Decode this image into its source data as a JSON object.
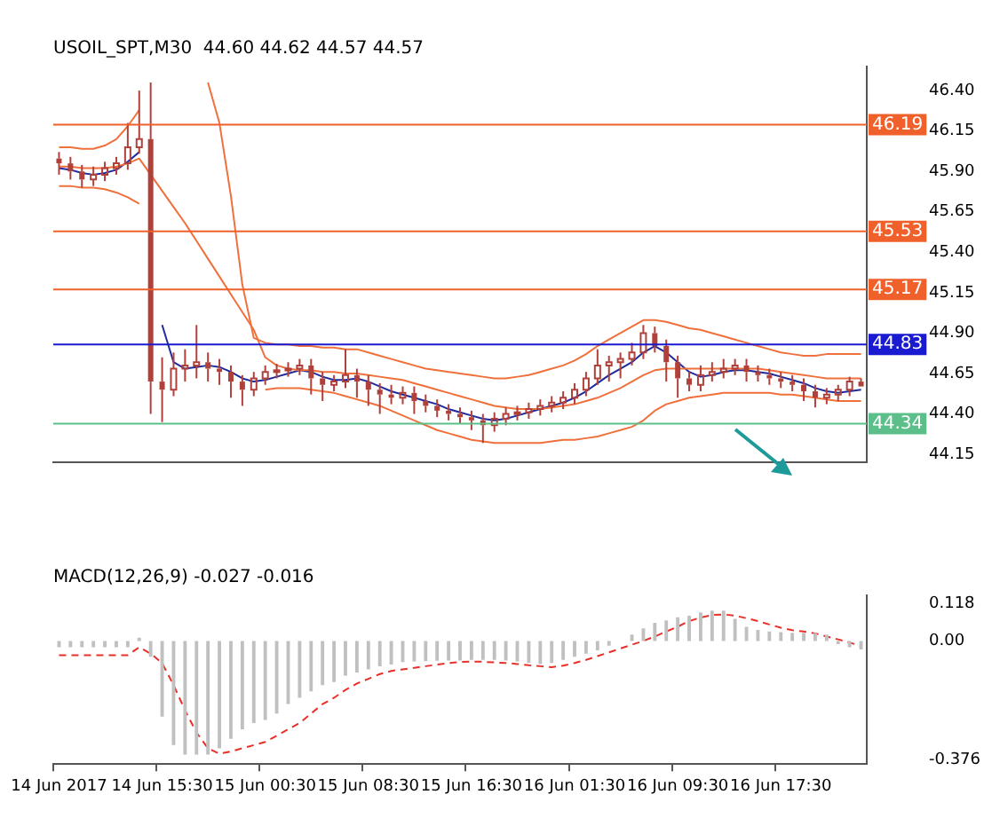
{
  "chart_data": [
    {
      "type": "candlestick",
      "title": "USOIL_SPT,M30  44.60 44.62 44.57 44.57",
      "categories": [
        null,
        null,
        null,
        null,
        null,
        null,
        null,
        null,
        null,
        null,
        null,
        null,
        null,
        null,
        null,
        null,
        null,
        null,
        null,
        null,
        null,
        null,
        null,
        null,
        null,
        null,
        null,
        null,
        null,
        null,
        null,
        null,
        null,
        null,
        null,
        null,
        null,
        null,
        null,
        null,
        null,
        null,
        null,
        null,
        null,
        null,
        null,
        null,
        null,
        null,
        null,
        null,
        null,
        null,
        null,
        null,
        null,
        null,
        null,
        null,
        null,
        null,
        null,
        null,
        null,
        null,
        null,
        null,
        null,
        null,
        null
      ],
      "series": [
        {
          "type": "line",
          "color": "#f0703c",
          "values": [
            46.05,
            46.05,
            46.04,
            46.04,
            46.06,
            46.1,
            46.18,
            46.28,
            null,
            null,
            null,
            null,
            null,
            46.45,
            46.2,
            45.75,
            45.2,
            44.87,
            44.84,
            44.83,
            44.83,
            44.82,
            44.82,
            44.81,
            44.81,
            44.8,
            44.8,
            44.78,
            44.76,
            44.74,
            44.72,
            44.7,
            44.68,
            44.67,
            44.66,
            44.65,
            44.64,
            44.63,
            44.62,
            44.62,
            44.63,
            44.64,
            44.66,
            44.68,
            44.7,
            44.73,
            44.77,
            44.82,
            44.86,
            44.9,
            44.94,
            44.98,
            44.98,
            44.97,
            44.95,
            44.93,
            44.92,
            44.9,
            44.88,
            44.86,
            44.84,
            44.82,
            44.8,
            44.78,
            44.77,
            44.76,
            44.76,
            44.77,
            44.77,
            44.77,
            44.77
          ]
        },
        {
          "type": "line",
          "color": "#f0703c",
          "values": [
            45.93,
            45.93,
            45.92,
            45.92,
            45.92,
            45.93,
            45.95,
            45.98,
            45.88,
            45.78,
            45.68,
            45.58,
            45.47,
            45.36,
            45.25,
            45.14,
            45.03,
            44.92,
            44.75,
            44.7,
            44.68,
            44.67,
            44.67,
            44.66,
            44.66,
            44.65,
            44.65,
            44.64,
            44.63,
            44.62,
            44.61,
            44.59,
            44.57,
            44.55,
            44.53,
            44.51,
            44.49,
            44.47,
            44.45,
            44.44,
            44.43,
            44.43,
            44.43,
            44.44,
            44.45,
            44.46,
            44.48,
            44.5,
            44.53,
            44.56,
            44.6,
            44.64,
            44.67,
            44.68,
            44.68,
            44.68,
            44.68,
            44.68,
            44.68,
            44.68,
            44.68,
            44.68,
            44.67,
            44.66,
            44.65,
            44.64,
            44.63,
            44.62,
            44.62,
            44.62,
            44.62
          ]
        },
        {
          "type": "line",
          "color": "#f0703c",
          "values": [
            45.81,
            45.81,
            45.8,
            45.8,
            45.79,
            45.77,
            45.74,
            45.7,
            null,
            null,
            null,
            null,
            null,
            null,
            null,
            null,
            null,
            null,
            44.55,
            44.56,
            44.56,
            44.56,
            44.55,
            44.54,
            44.53,
            44.51,
            44.49,
            44.47,
            44.45,
            44.42,
            44.39,
            44.36,
            44.33,
            44.3,
            44.28,
            44.26,
            44.24,
            44.23,
            44.22,
            44.22,
            44.22,
            44.22,
            44.22,
            44.23,
            44.24,
            44.24,
            44.25,
            44.26,
            44.28,
            44.3,
            44.32,
            44.36,
            44.42,
            44.46,
            44.48,
            44.5,
            44.51,
            44.52,
            44.53,
            44.53,
            44.53,
            44.53,
            44.53,
            44.52,
            44.52,
            44.51,
            44.5,
            44.49,
            44.48,
            44.48,
            44.48
          ]
        },
        {
          "type": "line",
          "color": "#1f2a9c",
          "values": [
            45.92,
            45.91,
            45.89,
            45.88,
            45.89,
            45.91,
            45.96,
            46.02,
            null,
            44.95,
            44.72,
            44.68,
            44.69,
            44.7,
            44.69,
            44.66,
            44.62,
            44.6,
            44.61,
            44.63,
            44.65,
            44.67,
            44.66,
            44.63,
            44.61,
            44.61,
            44.62,
            44.6,
            44.57,
            44.54,
            44.52,
            44.5,
            44.48,
            44.46,
            44.43,
            44.41,
            44.39,
            44.37,
            44.36,
            44.37,
            44.39,
            44.41,
            44.43,
            44.45,
            44.47,
            44.5,
            44.54,
            44.59,
            44.64,
            44.68,
            44.72,
            44.78,
            44.82,
            44.78,
            44.72,
            44.66,
            44.63,
            44.64,
            44.66,
            44.67,
            44.67,
            44.66,
            44.65,
            44.63,
            44.61,
            44.59,
            44.56,
            44.54,
            44.53,
            44.54,
            44.55
          ]
        },
        {
          "color": "#b0403a",
          "ohlc": [
            [
              45.98,
              46.02,
              45.88,
              45.95
            ],
            [
              45.95,
              45.99,
              45.85,
              45.9
            ],
            [
              45.9,
              45.94,
              45.8,
              45.85
            ],
            [
              45.85,
              45.93,
              45.81,
              45.88
            ],
            [
              45.88,
              45.96,
              45.84,
              45.92
            ],
            [
              45.92,
              45.99,
              45.88,
              45.95
            ],
            [
              45.95,
              46.2,
              45.91,
              46.05
            ],
            [
              46.05,
              46.4,
              46.01,
              46.1
            ],
            [
              46.1,
              46.45,
              44.4,
              44.6
            ],
            [
              44.6,
              44.75,
              44.35,
              44.55
            ],
            [
              44.55,
              44.78,
              44.51,
              44.68
            ],
            [
              44.68,
              44.8,
              44.6,
              44.7
            ],
            [
              44.7,
              44.95,
              44.62,
              44.72
            ],
            [
              44.72,
              44.78,
              44.6,
              44.68
            ],
            [
              44.68,
              44.74,
              44.58,
              44.66
            ],
            [
              44.66,
              44.7,
              44.5,
              44.6
            ],
            [
              44.6,
              44.64,
              44.45,
              44.55
            ],
            [
              44.55,
              44.66,
              44.51,
              44.62
            ],
            [
              44.62,
              44.7,
              44.58,
              44.66
            ],
            [
              44.66,
              44.71,
              44.62,
              44.67
            ],
            [
              44.67,
              44.72,
              44.63,
              44.68
            ],
            [
              44.68,
              44.74,
              44.64,
              44.7
            ],
            [
              44.7,
              44.74,
              44.52,
              44.62
            ],
            [
              44.62,
              44.66,
              44.48,
              44.58
            ],
            [
              44.58,
              44.64,
              44.54,
              44.6
            ],
            [
              44.6,
              44.8,
              44.56,
              44.64
            ],
            [
              44.64,
              44.68,
              44.5,
              44.6
            ],
            [
              44.6,
              44.64,
              44.45,
              44.55
            ],
            [
              44.55,
              44.59,
              44.4,
              44.52
            ],
            [
              44.52,
              44.58,
              44.46,
              44.5
            ],
            [
              44.5,
              44.57,
              44.46,
              44.53
            ],
            [
              44.53,
              44.57,
              44.4,
              44.48
            ],
            [
              44.48,
              44.52,
              44.41,
              44.45
            ],
            [
              44.45,
              44.49,
              44.38,
              44.42
            ],
            [
              44.42,
              44.46,
              44.36,
              44.4
            ],
            [
              44.4,
              44.44,
              44.34,
              44.38
            ],
            [
              44.38,
              44.42,
              44.3,
              44.36
            ],
            [
              44.36,
              44.4,
              44.22,
              44.33
            ],
            [
              44.33,
              44.41,
              44.29,
              44.37
            ],
            [
              44.37,
              44.44,
              44.33,
              44.4
            ],
            [
              44.4,
              44.45,
              44.36,
              44.41
            ],
            [
              44.41,
              44.47,
              44.37,
              44.43
            ],
            [
              44.43,
              44.49,
              44.39,
              44.45
            ],
            [
              44.45,
              44.51,
              44.41,
              44.47
            ],
            [
              44.47,
              44.54,
              44.43,
              44.5
            ],
            [
              44.5,
              44.59,
              44.46,
              44.55
            ],
            [
              44.55,
              44.66,
              44.51,
              44.62
            ],
            [
              44.62,
              44.8,
              44.58,
              44.7
            ],
            [
              44.7,
              44.76,
              44.6,
              44.72
            ],
            [
              44.72,
              44.78,
              44.62,
              44.74
            ],
            [
              44.74,
              44.84,
              44.7,
              44.78
            ],
            [
              44.78,
              44.95,
              44.74,
              44.9
            ],
            [
              44.9,
              44.94,
              44.78,
              44.82
            ],
            [
              44.82,
              44.86,
              44.6,
              44.72
            ],
            [
              44.72,
              44.76,
              44.5,
              44.62
            ],
            [
              44.62,
              44.66,
              44.54,
              44.58
            ],
            [
              44.58,
              44.7,
              44.54,
              44.64
            ],
            [
              44.64,
              44.72,
              44.6,
              44.66
            ],
            [
              44.66,
              44.74,
              44.62,
              44.68
            ],
            [
              44.68,
              44.74,
              44.64,
              44.7
            ],
            [
              44.7,
              44.74,
              44.6,
              44.66
            ],
            [
              44.66,
              44.7,
              44.6,
              44.64
            ],
            [
              44.64,
              44.68,
              44.58,
              44.62
            ],
            [
              44.62,
              44.66,
              44.56,
              44.6
            ],
            [
              44.6,
              44.64,
              44.54,
              44.58
            ],
            [
              44.58,
              44.62,
              44.48,
              44.54
            ],
            [
              44.54,
              44.58,
              44.44,
              44.5
            ],
            [
              44.5,
              44.56,
              44.46,
              44.52
            ],
            [
              44.52,
              44.58,
              44.48,
              44.55
            ],
            [
              44.55,
              44.63,
              44.51,
              44.6
            ],
            [
              44.6,
              44.62,
              44.57,
              44.57
            ]
          ]
        }
      ],
      "ylim": [
        44.1,
        46.55
      ],
      "yticks": [
        44.15,
        {
          "value": 44.4,
          "label": "44.40"
        },
        44.65,
        {
          "value": 44.9,
          "label": "44.90"
        },
        45.15,
        {
          "value": 45.4,
          "label": "45.40"
        },
        45.65,
        {
          "value": 45.9,
          "label": "45.90"
        },
        46.15,
        {
          "value": 46.4,
          "label": "46.40"
        }
      ],
      "ref_lines": [
        {
          "axis": "y",
          "value": 46.19,
          "label": "46.19",
          "color": "#f0602a"
        },
        {
          "axis": "y",
          "value": 45.53,
          "label": "45.53",
          "color": "#f0602a"
        },
        {
          "axis": "y",
          "value": 45.17,
          "label": "45.17",
          "color": "#f0602a"
        },
        {
          "axis": "y",
          "value": 44.83,
          "label": "44.83",
          "color": "#1a1ad0"
        },
        {
          "axis": "y",
          "value": 44.34,
          "label": "44.34",
          "color": "#5cbf8a"
        }
      ],
      "marker": "none",
      "legend": false,
      "grid": false,
      "tick_labels": "y"
    },
    {
      "type": "bar",
      "title": "MACD(12,26,9) -0.027 -0.016",
      "categories": [
        "14 Jun 2017",
        null,
        null,
        null,
        null,
        null,
        null,
        null,
        null,
        "14 Jun 15:30",
        null,
        null,
        null,
        null,
        null,
        null,
        null,
        null,
        "15 Jun 00:30",
        null,
        null,
        null,
        null,
        null,
        null,
        null,
        null,
        "15 Jun 08:30",
        null,
        null,
        null,
        null,
        null,
        null,
        null,
        null,
        "15 Jun 16:30",
        null,
        null,
        null,
        null,
        null,
        null,
        null,
        null,
        "16 Jun 01:30",
        null,
        null,
        null,
        null,
        null,
        null,
        null,
        null,
        "16 Jun 09:30",
        null,
        null,
        null,
        null,
        null,
        null,
        null,
        null,
        "16 Jun 17:30",
        null,
        null,
        null,
        null,
        null,
        null,
        null
      ],
      "series": [
        {
          "color": "#c0c0c0",
          "values": [
            -0.02,
            -0.02,
            -0.02,
            -0.02,
            -0.02,
            -0.02,
            -0.02,
            0.01,
            -0.05,
            -0.24,
            -0.33,
            -0.36,
            -0.36,
            -0.36,
            -0.34,
            -0.31,
            -0.28,
            -0.26,
            -0.25,
            -0.23,
            -0.2,
            -0.18,
            -0.16,
            -0.14,
            -0.13,
            -0.11,
            -0.1,
            -0.09,
            -0.08,
            -0.075,
            -0.067,
            -0.065,
            -0.064,
            -0.063,
            -0.062,
            -0.062,
            -0.06,
            -0.06,
            -0.06,
            -0.062,
            -0.065,
            -0.07,
            -0.073,
            -0.07,
            -0.06,
            -0.05,
            -0.04,
            -0.03,
            -0.015,
            0,
            0.02,
            0.04,
            0.057,
            0.065,
            0.075,
            0.08,
            0.09,
            0.096,
            0.096,
            0.07,
            0.045,
            0.035,
            0.03,
            0.028,
            0.026,
            0.026,
            0.025,
            0.02,
            -0.01,
            -0.02,
            -0.027
          ]
        },
        {
          "type": "line",
          "color": "#e8302a",
          "line_style": "dashed",
          "values": [
            -0.045,
            -0.045,
            -0.045,
            -0.045,
            -0.045,
            -0.045,
            -0.045,
            -0.02,
            -0.04,
            -0.07,
            -0.14,
            -0.22,
            -0.29,
            -0.34,
            -0.357,
            -0.35,
            -0.34,
            -0.33,
            -0.32,
            -0.3,
            -0.28,
            -0.26,
            -0.23,
            -0.2,
            -0.18,
            -0.155,
            -0.135,
            -0.12,
            -0.105,
            -0.095,
            -0.09,
            -0.085,
            -0.08,
            -0.075,
            -0.07,
            -0.067,
            -0.065,
            -0.066,
            -0.068,
            -0.07,
            -0.073,
            -0.077,
            -0.08,
            -0.083,
            -0.078,
            -0.07,
            -0.06,
            -0.048,
            -0.036,
            -0.024,
            -0.012,
            0,
            0.014,
            0.03,
            0.045,
            0.063,
            0.074,
            0.082,
            0.084,
            0.08,
            0.072,
            0.063,
            0.052,
            0.042,
            0.034,
            0.03,
            0.024,
            0.014,
            0.005,
            -0.005,
            -0.016
          ]
        }
      ],
      "ylim": [
        -0.39,
        0.145
      ],
      "yticks": [
        0.118,
        {
          "value": 0,
          "label": "0.00"
        },
        -0.376
      ],
      "marker": "none",
      "legend": false,
      "grid": false
    }
  ]
}
